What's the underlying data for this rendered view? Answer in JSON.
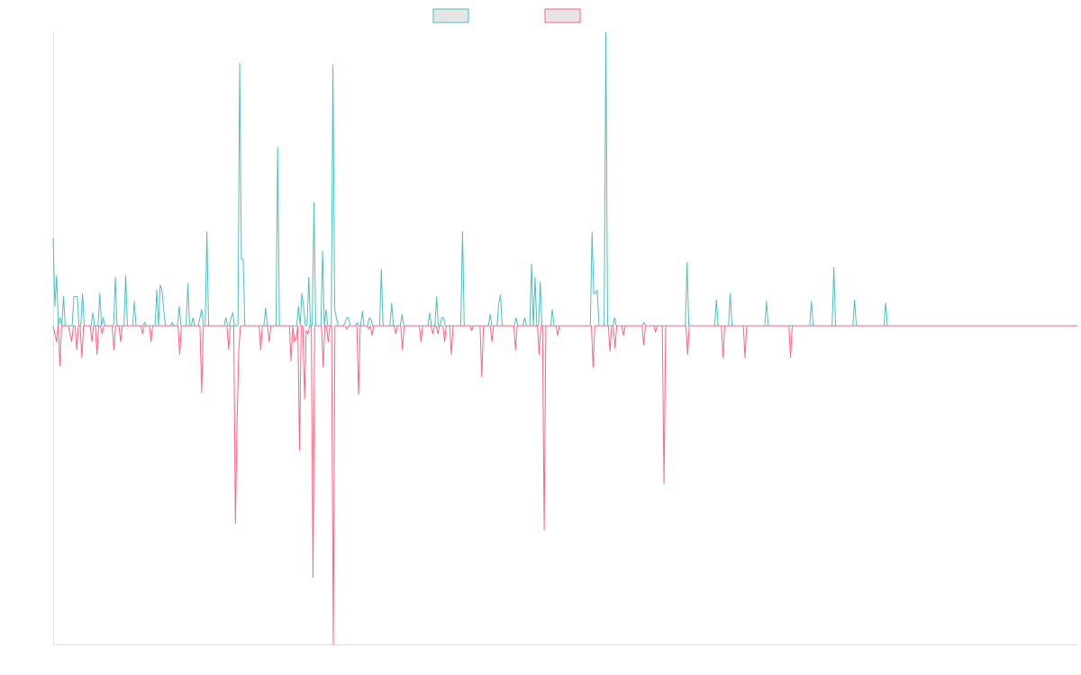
{
  "colors": {
    "up": "#4bc0c0",
    "down": "#ff6384",
    "legend_fill": "#e5e5e5",
    "axis": "#e0e0e0"
  },
  "chart_data": {
    "type": "line",
    "title": "",
    "xlabel": "",
    "ylabel": "",
    "ylim": [
      -1.0,
      0.91
    ],
    "grid": false,
    "legend_position": "top-center",
    "series": [
      {
        "color": "#4bc0c0",
        "values": [
          0.54,
          0.12,
          0.31,
          0.0,
          0.05,
          0.0,
          0.18,
          0.0,
          0.0,
          0.0,
          0.0,
          0.0,
          0.18,
          0.18,
          0.18,
          0.0,
          0.0,
          0.2,
          0.0,
          0.0,
          0.0,
          0.0,
          0.0,
          0.08,
          0.0,
          0.0,
          0.0,
          0.2,
          0.0,
          0.05,
          0.0,
          0.0,
          0.0,
          0.0,
          0.0,
          0.0,
          0.3,
          0.0,
          0.0,
          0.0,
          0.0,
          0.0,
          0.31,
          0.0,
          0.0,
          0.0,
          0.0,
          0.15,
          0.0,
          0.0,
          0.0,
          0.0,
          0.0,
          0.02,
          0.0,
          0.0,
          0.0,
          0.0,
          0.0,
          0.0,
          0.22,
          0.0,
          0.25,
          0.22,
          0.1,
          0.0,
          0.0,
          0.0,
          0.0,
          0.02,
          0.0,
          0.0,
          0.0,
          0.12,
          0.0,
          0.0,
          0.0,
          0.0,
          0.26,
          0.0,
          0.0,
          0.05,
          0.0,
          0.0,
          0.0,
          0.05,
          0.1,
          0.0,
          0.0,
          0.58,
          0.0,
          0.0,
          0.0,
          0.0,
          0.0,
          0.0,
          0.0,
          0.0,
          0.0,
          0.0,
          0.05,
          0.0,
          0.0,
          0.05,
          0.08,
          0.0,
          0.0,
          0.0,
          1.62,
          0.41,
          0.41,
          0.0,
          0.0,
          0.0,
          0.0,
          0.0,
          0.0,
          0.0,
          0.0,
          0.0,
          0.0,
          0.0,
          0.0,
          0.11,
          0.0,
          0.0,
          0.0,
          0.0,
          0.0,
          0.0,
          1.1,
          0.0,
          0.0,
          0.0,
          0.0,
          0.0,
          0.0,
          0.0,
          0.0,
          0.0,
          0.0,
          0.0,
          0.12,
          0.0,
          0.2,
          0.12,
          0.0,
          0.0,
          0.3,
          0.0,
          0.0,
          0.76,
          0.0,
          0.0,
          0.0,
          0.0,
          0.46,
          0.0,
          0.1,
          0.0,
          0.0,
          0.0,
          1.61,
          0.1,
          0.05,
          0.0,
          0.0,
          0.0,
          0.0,
          0.02,
          0.05,
          0.05,
          0.0,
          0.0,
          0.0,
          0.0,
          0.02,
          0.0,
          0.0,
          0.09,
          0.0,
          0.0,
          0.0,
          0.05,
          0.04,
          0.0,
          0.0,
          0.0,
          0.0,
          0.0,
          0.35,
          0.0,
          0.0,
          0.0,
          0.0,
          0.0,
          0.14,
          0.0,
          0.0,
          0.0,
          0.0,
          0.0,
          0.07,
          0.0,
          0.0,
          0.0,
          0.0,
          0.0,
          0.0,
          0.0,
          0.0,
          0.0,
          0.0,
          0.0,
          0.0,
          0.0,
          0.0,
          0.0,
          0.08,
          0.0,
          0.0,
          0.0,
          0.18,
          0.0,
          0.0,
          0.05,
          0.05,
          0.0,
          0.0,
          0.0,
          0.0,
          0.0,
          0.0,
          0.0,
          0.0,
          0.0,
          0.0,
          0.58,
          0.0,
          0.0,
          0.0,
          0.0,
          0.0,
          0.0,
          0.0,
          0.0,
          0.0,
          0.0,
          0.0,
          0.0,
          0.0,
          0.0,
          0.0,
          0.07,
          0.0,
          0.0,
          0.0,
          0.0,
          0.14,
          0.19,
          0.0,
          0.0,
          0.0,
          0.0,
          0.0,
          0.0,
          0.0,
          0.0,
          0.05,
          0.0,
          0.0,
          0.0,
          0.0,
          0.05,
          0.0,
          0.0,
          0.0,
          0.38,
          0.0,
          0.3,
          0.0,
          0.0,
          0.27,
          0.0,
          0.0,
          0.0,
          0.0,
          0.0,
          0.0,
          0.1,
          0.0,
          0.0,
          0.0,
          0.0,
          0.0,
          0.0,
          0.0,
          0.0,
          0.0,
          0.0,
          0.0,
          0.0,
          0.0,
          0.0,
          0.0,
          0.0,
          0.0,
          0.0,
          0.0,
          0.0,
          0.0,
          0.0,
          0.58,
          0.2,
          0.2,
          0.22,
          0.0,
          0.0,
          0.0,
          0.0,
          1.81,
          0.0,
          0.0,
          0.0,
          0.0,
          0.05,
          0.0,
          0.0,
          0.0,
          0.0,
          0.0,
          0.0,
          0.0,
          0.0,
          0.0,
          0.0,
          0.0,
          0.0,
          0.0,
          0.0,
          0.0,
          0.0,
          0.02,
          0.0,
          0.0,
          0.0,
          0.0,
          0.0,
          0.0,
          0.0,
          0.0,
          0.0,
          0.0,
          0.0,
          0.0,
          0.0,
          0.0,
          0.0,
          0.0,
          0.0,
          0.0,
          0.0,
          0.0,
          0.0,
          0.0,
          0.0,
          0.0,
          0.39,
          0.0,
          0.0,
          0.0,
          0.0,
          0.0,
          0.0,
          0.0,
          0.0,
          0.0,
          0.0,
          0.0,
          0.0,
          0.0,
          0.0,
          0.0,
          0.0,
          0.16,
          0.0,
          0.0,
          0.0,
          0.0,
          0.0,
          0.0,
          0.0,
          0.2,
          0.0,
          0.0,
          0.0,
          0.0,
          0.0,
          0.0,
          0.0,
          0.0,
          0.0,
          0.0,
          0.0,
          0.0,
          0.0,
          0.0,
          0.0,
          0.0,
          0.0,
          0.0,
          0.0,
          0.0,
          0.15,
          0.0,
          0.0,
          0.0,
          0.0,
          0.0,
          0.0,
          0.0,
          0.0,
          0.0,
          0.0,
          0.0,
          0.0,
          0.0,
          0.0,
          0.0,
          0.0,
          0.0,
          0.0,
          0.0,
          0.0,
          0.0,
          0.0,
          0.0,
          0.0,
          0.0,
          0.15,
          0.0,
          0.0,
          0.0,
          0.0,
          0.0,
          0.0,
          0.0,
          0.0,
          0.0,
          0.0,
          0.0,
          0.0,
          0.36,
          0.0,
          0.0,
          0.0,
          0.0,
          0.0,
          0.0,
          0.0,
          0.0,
          0.0,
          0.0,
          0.0,
          0.16,
          0.0,
          0.0,
          0.0,
          0.0,
          0.0,
          0.0,
          0.0,
          0.0,
          0.0,
          0.0,
          0.0,
          0.0,
          0.0,
          0.0,
          0.0,
          0.0,
          0.0,
          0.14,
          0.0,
          0.0,
          0.0,
          0.0,
          0.0,
          0.0,
          0.0,
          0.0,
          0.0,
          0.0,
          0.0,
          0.0,
          0.0,
          0.0,
          0.0,
          0.0,
          0.0,
          0.0,
          0.0,
          0.0,
          0.0,
          0.0,
          0.0,
          0.0,
          0.0,
          0.0,
          0.0,
          0.0,
          0.0,
          0.0,
          0.0,
          0.0,
          0.0,
          0.0,
          0.0,
          0.0,
          0.0,
          0.0,
          0.0,
          0.0,
          0.0,
          0.0,
          0.0,
          0.0,
          0.0,
          0.0,
          0.0,
          0.0,
          0.0,
          0.0,
          0.0,
          0.0,
          0.0,
          0.0,
          0.0,
          0.0,
          0.0,
          0.0,
          0.0,
          0.0,
          0.0,
          0.0,
          0.0,
          0.0,
          0.0,
          0.0,
          0.0,
          0.0,
          0.0,
          0.0,
          0.0,
          0.0,
          0.0,
          0.0,
          0.0,
          0.0,
          0.0,
          0.0,
          0.0,
          0.0,
          0.0,
          0.0,
          0.0,
          0.0,
          0.0,
          0.0,
          0.0,
          0.0,
          0.0,
          0.0,
          0.0,
          0.0,
          0.0,
          0.0,
          0.0,
          0.0,
          0.0,
          0.0,
          0.0,
          0.0,
          0.0,
          0.0,
          0.0,
          0.0,
          0.0,
          0.0,
          0.0,
          0.0,
          0.0,
          0.0,
          0.0
        ]
      },
      {
        "color": "#ff6384",
        "values": [
          0.0,
          -0.05,
          -0.1,
          0.0,
          -0.25,
          0.0,
          0.0,
          0.0,
          0.0,
          0.0,
          -0.05,
          -0.1,
          0.0,
          0.0,
          -0.15,
          0.0,
          0.0,
          -0.2,
          0.0,
          0.0,
          0.0,
          0.0,
          0.0,
          -0.1,
          0.0,
          0.0,
          -0.18,
          0.0,
          0.0,
          -0.05,
          0.0,
          0.0,
          0.0,
          0.0,
          0.0,
          0.0,
          -0.15,
          0.0,
          0.0,
          0.0,
          -0.1,
          0.0,
          0.0,
          0.0,
          0.0,
          0.0,
          0.0,
          0.0,
          0.0,
          0.0,
          0.0,
          0.0,
          0.0,
          -0.05,
          0.0,
          0.0,
          0.0,
          0.0,
          -0.1,
          0.0,
          0.0,
          0.0,
          0.0,
          0.0,
          0.0,
          0.0,
          0.0,
          0.0,
          0.0,
          0.0,
          0.0,
          0.0,
          0.0,
          0.0,
          0.0,
          -0.18,
          0.0,
          0.0,
          0.0,
          0.0,
          0.0,
          0.0,
          0.0,
          0.0,
          0.0,
          0.0,
          0.0,
          0.0,
          -0.42,
          0.0,
          0.0,
          0.0,
          0.0,
          0.0,
          0.0,
          0.0,
          0.0,
          0.0,
          0.0,
          0.0,
          0.0,
          0.0,
          0.0,
          0.0,
          -0.15,
          0.0,
          0.0,
          0.0,
          -1.24,
          -0.6,
          -0.15,
          0.0,
          0.0,
          0.0,
          0.0,
          0.0,
          0.0,
          0.0,
          0.0,
          0.0,
          0.0,
          0.0,
          0.0,
          -0.15,
          0.0,
          0.0,
          0.0,
          0.0,
          -0.1,
          0.0,
          0.0,
          0.0,
          0.0,
          0.0,
          0.0,
          0.0,
          0.0,
          0.0,
          0.0,
          0.0,
          0.0,
          -0.22,
          0.0,
          -0.1,
          -0.08,
          0.0,
          -0.78,
          0.0,
          0.0,
          -0.46,
          -0.03,
          -0.05,
          0.0,
          0.0,
          -1.58,
          0.0,
          0.0,
          0.0,
          0.0,
          0.0,
          -0.26,
          0.0,
          0.0,
          -0.1,
          0.0,
          0.0,
          -2.0,
          0.0,
          0.0,
          0.0,
          0.0,
          0.0,
          0.0,
          0.0,
          -0.02,
          0.0,
          0.0,
          0.0,
          0.0,
          0.0,
          0.0,
          -0.43,
          0.0,
          0.0,
          0.0,
          0.0,
          0.0,
          -0.02,
          0.0,
          -0.06,
          0.0,
          0.0,
          0.0,
          0.0,
          0.0,
          0.0,
          0.0,
          0.0,
          0.0,
          0.0,
          0.0,
          0.0,
          0.0,
          -0.05,
          0.0,
          0.0,
          0.0,
          -0.15,
          0.0,
          0.0,
          0.0,
          0.0,
          0.0,
          0.0,
          0.0,
          0.0,
          0.0,
          0.0,
          -0.1,
          0.0,
          0.0,
          0.0,
          0.0,
          0.0,
          0.0,
          -0.05,
          0.0,
          0.0,
          -0.05,
          0.0,
          0.0,
          0.0,
          -0.1,
          0.0,
          0.0,
          0.0,
          -0.18,
          0.0,
          0.0,
          0.0,
          0.0,
          0.0,
          0.0,
          0.0,
          0.0,
          0.0,
          0.0,
          0.0,
          -0.03,
          0.0,
          0.0,
          0.0,
          0.0,
          0.0,
          -0.32,
          0.0,
          0.0,
          0.0,
          0.0,
          0.0,
          -0.1,
          0.0,
          0.0,
          0.0,
          0.0,
          0.0,
          0.0,
          0.0,
          0.0,
          0.0,
          0.0,
          0.0,
          0.0,
          0.0,
          -0.15,
          0.0,
          0.0,
          0.0,
          0.0,
          0.0,
          0.0,
          0.0,
          0.0,
          0.0,
          0.0,
          0.0,
          0.0,
          0.0,
          -0.18,
          0.0,
          0.0,
          -1.28,
          0.0,
          0.0,
          0.0,
          0.0,
          0.0,
          0.0,
          0.0,
          -0.06,
          0.0,
          0.0,
          0.0,
          0.0,
          0.0,
          0.0,
          0.0,
          0.0,
          0.0,
          0.0,
          0.0,
          0.0,
          0.0,
          0.0,
          0.0,
          0.0,
          0.0,
          0.0,
          0.0,
          0.0,
          -0.26,
          0.0,
          0.0,
          0.0,
          0.0,
          0.0,
          0.0,
          0.0,
          0.0,
          0.0,
          -0.16,
          0.0,
          0.0,
          -0.14,
          0.0,
          0.0,
          0.0,
          0.0,
          -0.06,
          0.0,
          0.0,
          0.0,
          0.0,
          0.0,
          0.0,
          0.0,
          0.0,
          0.0,
          0.0,
          0.0,
          -0.12,
          0.0,
          0.0,
          0.0,
          0.0,
          0.0,
          0.0,
          -0.04,
          0.0,
          0.0,
          0.0,
          0.0,
          -0.99,
          0.0,
          0.0,
          0.0,
          0.0,
          0.0,
          0.0,
          0.0,
          0.0,
          0.0,
          0.0,
          0.0,
          0.0,
          0.0,
          -0.18,
          0.0,
          0.0,
          0.0,
          0.0,
          0.0,
          0.0,
          0.0,
          0.0,
          0.0,
          0.0,
          0.0,
          0.0,
          0.0,
          0.0,
          0.0,
          0.0,
          0.0,
          0.0,
          0.0,
          0.0,
          -0.2,
          0.0,
          0.0,
          0.0,
          0.0,
          0.0,
          0.0,
          0.0,
          0.0,
          0.0,
          0.0,
          0.0,
          0.0,
          -0.2,
          0.0,
          0.0,
          0.0,
          0.0,
          0.0,
          0.0,
          0.0,
          0.0,
          0.0,
          0.0,
          0.0,
          0.0,
          0.0,
          0.0,
          0.0,
          0.0,
          0.0,
          0.0,
          0.0,
          0.0,
          0.0,
          0.0,
          0.0,
          0.0,
          0.0,
          0.0,
          -0.2,
          0.0,
          0.0,
          0.0,
          0.0,
          0.0,
          0.0,
          0.0,
          0.0,
          0.0,
          0.0,
          0.0,
          0.0,
          0.0,
          0.0,
          0.0,
          0.0,
          0.0,
          0.0,
          0.0,
          0.0,
          0.0,
          0.0,
          0.0,
          0.0,
          0.0,
          0.0,
          0.0,
          0.0,
          0.0,
          0.0,
          0.0,
          0.0,
          0.0,
          0.0,
          0.0,
          0.0,
          0.0,
          0.0,
          0.0,
          0.0,
          0.0,
          0.0,
          0.0,
          0.0,
          0.0,
          0.0,
          0.0,
          0.0,
          0.0,
          0.0,
          0.0,
          0.0,
          0.0,
          0.0,
          0.0,
          0.0,
          0.0,
          0.0,
          0.0,
          0.0,
          0.0,
          0.0,
          0.0,
          0.0,
          0.0,
          0.0,
          0.0,
          0.0,
          0.0,
          0.0,
          0.0,
          0.0,
          0.0,
          0.0,
          0.0,
          0.0,
          0.0,
          0.0,
          0.0,
          0.0,
          0.0,
          0.0,
          0.0,
          0.0,
          0.0,
          0.0,
          0.0,
          0.0,
          0.0,
          0.0,
          0.0,
          0.0,
          0.0,
          0.0,
          0.0,
          0.0,
          0.0,
          0.0,
          0.0,
          0.0,
          0.0,
          0.0,
          0.0,
          0.0,
          0.0,
          0.0,
          0.0,
          0.0,
          0.0,
          0.0,
          0.0,
          0.0,
          0.0,
          0.0,
          0.0,
          0.0,
          0.0,
          0.0,
          0.0,
          0.0,
          0.0,
          0.0,
          0.0,
          0.0,
          0.0,
          0.0,
          0.0,
          0.0,
          0.0,
          0.0,
          0.0,
          0.0,
          0.0,
          0.0,
          0.0,
          0.0,
          0.0,
          0.0,
          0.0,
          0.0,
          0.0,
          0.0,
          0.0,
          0.0,
          0.0,
          0.0,
          0.0,
          0.0,
          0.0,
          0.0,
          0.0,
          0.0,
          0.0,
          0.0,
          0.0,
          0.0,
          0.0,
          0.0,
          0.0,
          0.0,
          0.0,
          0.0,
          0.0,
          0.0,
          0.0,
          0.0,
          0.0,
          0.0,
          0.0,
          0.0
        ]
      }
    ]
  }
}
